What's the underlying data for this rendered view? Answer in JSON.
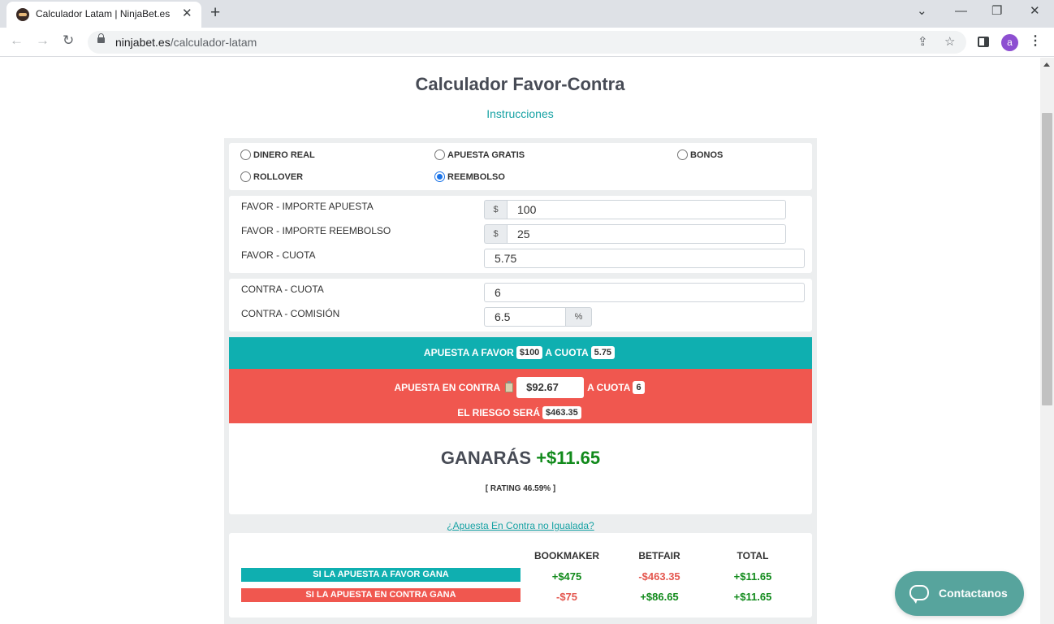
{
  "browser": {
    "tab_title": "Calculador Latam | NinjaBet.es",
    "url_domain": "ninjabet.es",
    "url_path": "/calculador-latam",
    "avatar_letter": "a"
  },
  "page": {
    "title": "Calculador Favor-Contra",
    "instructions": "Instrucciones"
  },
  "bet_types": [
    {
      "label": "DINERO REAL",
      "selected": false
    },
    {
      "label": "APUESTA GRATIS",
      "selected": false
    },
    {
      "label": "BONOS",
      "selected": false
    },
    {
      "label": "ROLLOVER",
      "selected": false
    },
    {
      "label": "REEMBOLSO",
      "selected": true
    }
  ],
  "favor": {
    "stake_label": "FAVOR - IMPORTE APUESTA",
    "stake_value": "100",
    "refund_label": "FAVOR - IMPORTE REEMBOLSO",
    "refund_value": "25",
    "odds_label": "FAVOR - CUOTA",
    "odds_value": "5.75",
    "currency": "$"
  },
  "contra": {
    "odds_label": "CONTRA - CUOTA",
    "odds_value": "6",
    "commission_label": "CONTRA - COMISIÓN",
    "commission_value": "6.5",
    "percent": "%"
  },
  "result": {
    "back_prefix": "APUESTA A FAVOR",
    "back_stake": "$100",
    "back_mid": "A CUOTA",
    "back_odds": "5.75",
    "lay_prefix": "APUESTA EN CONTRA",
    "lay_stake": "$92.67",
    "lay_mid": "A CUOTA",
    "lay_odds": "6",
    "risk_label": "EL RIESGO SERÁ",
    "risk_value": "$463.35",
    "profit_label": "GANARÁS",
    "profit_value": "+$11.65",
    "rating": "[ RATING 46.59% ]"
  },
  "underlay_link": "¿Apuesta En Contra no Igualada?",
  "table": {
    "headers": [
      "BOOKMAKER",
      "BETFAIR",
      "TOTAL"
    ],
    "rows": [
      {
        "label": "SI LA APUESTA A FAVOR GANA",
        "label_color": "#0fafb0",
        "values": [
          "+$475",
          "-$463.35",
          "+$11.65"
        ]
      },
      {
        "label": "SI LA APUESTA EN CONTRA GANA",
        "label_color": "#f0574f",
        "values": [
          "-$75",
          "+$86.65",
          "+$11.65"
        ]
      }
    ]
  },
  "contact_label": "Contactanos",
  "colors": {
    "teal": "#0fafb0",
    "red": "#f0574f",
    "green": "#118a1b",
    "link": "#17a2a4"
  }
}
